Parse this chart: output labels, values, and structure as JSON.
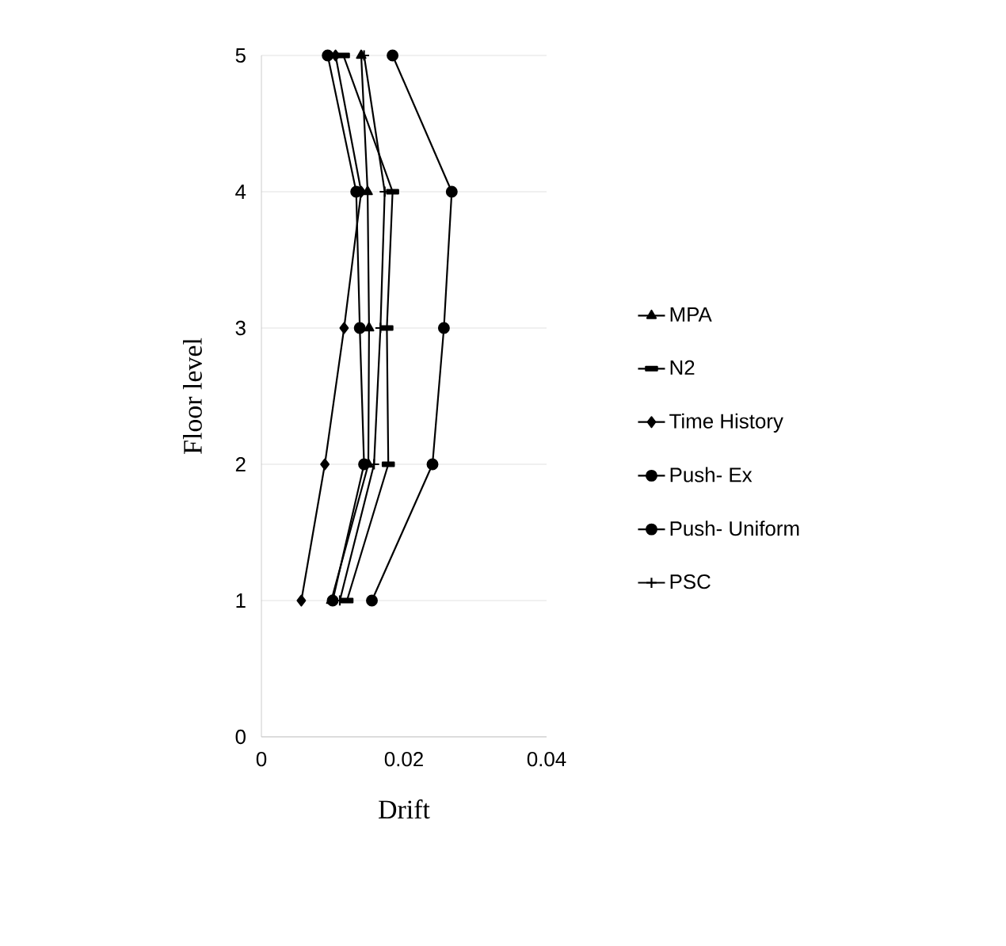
{
  "chart_data": {
    "type": "line",
    "xlabel": "Drift",
    "ylabel": "Floor level",
    "xlim": [
      0,
      0.04
    ],
    "xticks": [
      0,
      0.02,
      0.04
    ],
    "ylim": [
      0,
      5
    ],
    "yticks": [
      0,
      1,
      2,
      3,
      4,
      5
    ],
    "grid": "y",
    "legend": "right",
    "line_style": "solid",
    "series": [
      {
        "name": "MPA",
        "color": "#000000",
        "marker": "triangle",
        "x": [
          0.0098,
          0.015,
          0.0151,
          0.0149,
          0.014
        ],
        "values": [
          1,
          2,
          3,
          4,
          5
        ]
      },
      {
        "name": "N2",
        "color": "#000000",
        "marker": "square",
        "x": [
          0.012,
          0.0178,
          0.0176,
          0.0184,
          0.0115
        ],
        "values": [
          1,
          2,
          3,
          4,
          5
        ]
      },
      {
        "name": "Time History",
        "color": "#000000",
        "marker": "diamond",
        "x": [
          0.0056,
          0.0089,
          0.0116,
          0.014,
          0.0104
        ],
        "values": [
          1,
          2,
          3,
          4,
          5
        ]
      },
      {
        "name": "Push- Ex",
        "color": "#000000",
        "marker": "circle",
        "x": [
          0.0155,
          0.024,
          0.0256,
          0.0267,
          0.0184
        ],
        "values": [
          1,
          2,
          3,
          4,
          5
        ]
      },
      {
        "name": "Push- Uniform",
        "color": "#000000",
        "marker": "circle",
        "x": [
          0.01,
          0.0144,
          0.0138,
          0.0133,
          0.0093
        ],
        "values": [
          1,
          2,
          3,
          4,
          5
        ]
      },
      {
        "name": "PSC",
        "color": "#000000",
        "marker": "plus",
        "x": [
          0.011,
          0.0158,
          0.0167,
          0.0173,
          0.0144
        ],
        "values": [
          1,
          2,
          3,
          4,
          5
        ]
      }
    ]
  }
}
